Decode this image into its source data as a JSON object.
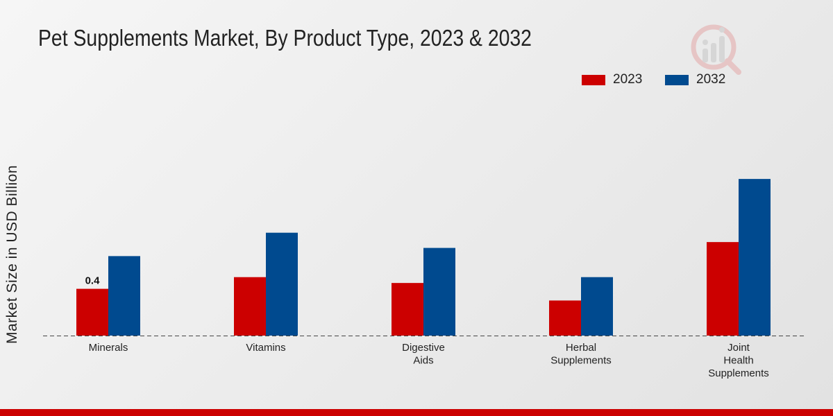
{
  "chart_data": {
    "type": "bar",
    "title": "Pet Supplements Market, By Product Type, 2023 & 2032",
    "xlabel": "",
    "ylabel": "Market Size in USD Billion",
    "categories": [
      [
        "Minerals"
      ],
      [
        "Vitamins"
      ],
      [
        "Digestive",
        "Aids"
      ],
      [
        "Herbal",
        "Supplements"
      ],
      [
        "Joint",
        "Health",
        "Supplements"
      ]
    ],
    "series": [
      {
        "name": "2023",
        "color": "#cc0000",
        "values": [
          0.4,
          0.5,
          0.45,
          0.3,
          0.8
        ]
      },
      {
        "name": "2032",
        "color": "#004a8f",
        "values": [
          0.68,
          0.88,
          0.75,
          0.5,
          1.34
        ]
      }
    ],
    "data_labels": [
      {
        "series": 0,
        "index": 0,
        "text": "0.4"
      }
    ],
    "ylim": [
      0,
      2.1
    ],
    "grid": false,
    "legend_position": "top-right"
  }
}
